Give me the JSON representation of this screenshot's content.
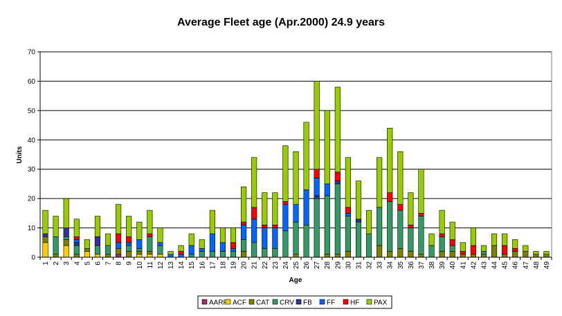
{
  "chart_data": {
    "type": "bar",
    "stacked": true,
    "title": "Average Fleet age (Apr.2000) 24.9 years",
    "xlabel": "Age",
    "ylabel": "Units",
    "ylim": [
      0,
      70
    ],
    "yticks": [
      0,
      10,
      20,
      30,
      40,
      50,
      60,
      70
    ],
    "grid": true,
    "legend_position": "bottom",
    "categories": [
      "1",
      "2",
      "3",
      "4",
      "5",
      "6",
      "7",
      "8",
      "9",
      "10",
      "11",
      "12",
      "13",
      "14",
      "15",
      "16",
      "17",
      "18",
      "19",
      "20",
      "21",
      "22",
      "23",
      "24",
      "25",
      "26",
      "27",
      "28",
      "29",
      "30",
      "31",
      "32",
      "33",
      "34",
      "35",
      "36",
      "37",
      "38",
      "39",
      "40",
      "41",
      "42",
      "43",
      "44",
      "45",
      "46",
      "47",
      "48",
      "49"
    ],
    "series": [
      {
        "name": "AARF",
        "color": "#993366",
        "values": [
          0,
          0,
          0,
          0,
          0,
          0,
          0,
          1,
          0,
          0,
          0,
          0,
          0,
          0,
          0,
          0,
          0,
          0,
          0,
          0,
          0,
          0,
          0,
          0,
          0,
          0,
          0,
          0,
          0,
          0,
          0,
          0,
          0,
          0,
          0,
          0,
          0,
          0,
          0,
          0,
          0,
          0,
          0,
          0,
          0,
          0,
          0,
          0,
          0
        ]
      },
      {
        "name": "ACF",
        "color": "#FFCC00",
        "values": [
          5,
          0,
          4,
          0,
          2,
          1,
          0,
          0,
          0,
          1,
          1,
          1,
          0,
          0,
          0,
          0,
          0,
          0,
          0,
          0,
          0,
          0,
          0,
          0,
          0,
          0,
          0,
          0,
          0,
          0,
          0,
          0,
          0,
          0,
          0,
          0,
          0,
          0,
          0,
          0,
          0,
          0,
          0,
          0,
          0,
          0,
          0,
          0,
          0
        ]
      },
      {
        "name": "CAT",
        "color": "#808000",
        "values": [
          2,
          1,
          2,
          1,
          1,
          0,
          1,
          2,
          2,
          1,
          1,
          0,
          0,
          0,
          0,
          0,
          0,
          0,
          0,
          2,
          0,
          0,
          0,
          0,
          1,
          0,
          0,
          1,
          1,
          2,
          0,
          0,
          4,
          2,
          3,
          2,
          1,
          0,
          2,
          2,
          1,
          1,
          1,
          4,
          1,
          2,
          2,
          1,
          1
        ]
      },
      {
        "name": "CRV",
        "color": "#339966",
        "values": [
          0,
          6,
          1,
          3,
          0,
          3,
          3,
          0,
          2,
          1,
          5,
          3,
          0,
          0,
          1,
          2,
          2,
          2,
          2,
          4,
          5,
          3,
          3,
          9,
          11,
          11,
          20,
          20,
          24,
          12,
          12,
          8,
          13,
          17,
          13,
          8,
          13,
          4,
          5,
          2,
          0,
          0,
          1,
          0,
          0,
          0,
          0,
          0,
          0
        ]
      },
      {
        "name": "FB",
        "color": "#333399",
        "values": [
          1,
          0,
          3,
          1,
          0,
          3,
          0,
          0,
          0,
          0,
          0,
          0,
          0,
          0,
          0,
          0,
          0,
          0,
          0,
          0,
          0,
          0,
          0,
          0,
          0,
          0,
          1,
          0,
          1,
          0,
          1,
          0,
          0,
          0,
          0,
          0,
          0,
          0,
          0,
          0,
          0,
          0,
          0,
          0,
          0,
          0,
          0,
          0,
          0
        ]
      },
      {
        "name": "FF",
        "color": "#0066FF",
        "values": [
          0,
          0,
          0,
          1,
          0,
          0,
          0,
          2,
          1,
          3,
          0,
          1,
          1,
          1,
          3,
          1,
          6,
          3,
          1,
          5,
          8,
          7,
          7,
          9,
          6,
          12,
          6,
          4,
          0,
          1,
          0,
          0,
          0,
          0,
          0,
          0,
          0,
          0,
          0,
          0,
          0,
          0,
          0,
          0,
          0,
          0,
          0,
          0,
          0
        ]
      },
      {
        "name": "HF",
        "color": "#FF0000",
        "values": [
          0,
          0,
          0,
          1,
          0,
          0,
          0,
          3,
          2,
          0,
          1,
          0,
          0,
          1,
          0,
          0,
          0,
          0,
          2,
          1,
          4,
          1,
          1,
          1,
          0,
          0,
          3,
          0,
          3,
          2,
          0,
          0,
          0,
          3,
          2,
          1,
          1,
          0,
          1,
          2,
          1,
          3,
          0,
          0,
          3,
          1,
          0,
          0,
          0
        ]
      },
      {
        "name": "PAX",
        "color": "#99CC00",
        "values": [
          8,
          7,
          10,
          6,
          3,
          7,
          4,
          10,
          7,
          6,
          8,
          5,
          1,
          2,
          4,
          3,
          8,
          5,
          5,
          12,
          17,
          11,
          11,
          19,
          18,
          23,
          30,
          25,
          29,
          17,
          13,
          8,
          17,
          22,
          18,
          11,
          15,
          4,
          8,
          6,
          3,
          6,
          2,
          4,
          4,
          3,
          2,
          1,
          1
        ]
      }
    ]
  }
}
